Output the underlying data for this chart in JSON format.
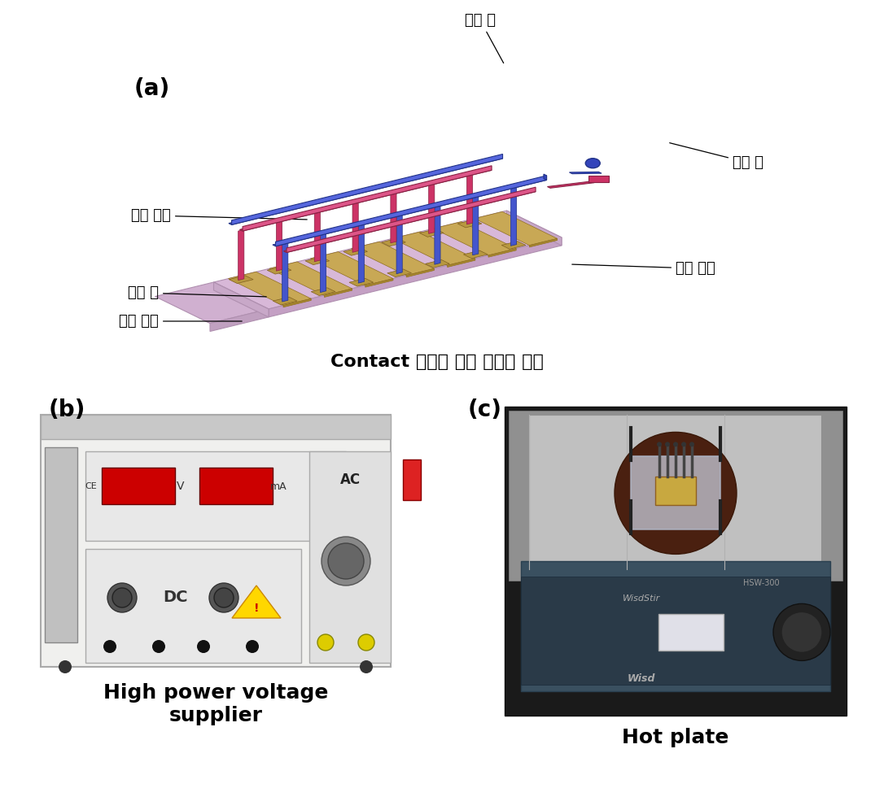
{
  "fig_width": 10.75,
  "fig_height": 9.69,
  "background_color": "#ffffff",
  "panel_a": {
    "label": "(a)",
    "caption": "Contact 방법에 의해 연결된 전선",
    "annot_yanggeuk": "양극 선",
    "annot_eumgeuk": "음극 선",
    "annot_habu": "하부 전극",
    "annot_sangbu": "상부 전극",
    "annot_boho": "보호 층",
    "annot_apjeon": "압전 박막"
  },
  "panel_b": {
    "label": "(b)",
    "caption_line1": "High power voltage",
    "caption_line2": "supplier"
  },
  "panel_c": {
    "label": "(c)",
    "caption": "Hot plate"
  },
  "font_sizes": {
    "panel_label": 20,
    "annotation": 13,
    "caption_a": 16,
    "caption_bc": 18
  },
  "colors": {
    "blue_rail": "#4455CC",
    "pink_rail": "#CC3366",
    "base_top": "#D8B8D8",
    "base_front": "#C4A0C4",
    "base_left": "#E0C8E0",
    "base_bottom": "#C0A0C0",
    "strip_top": "#C8A855",
    "strip_side": "#A88830",
    "post_base_top": "#B89840",
    "post_base_side": "#987820",
    "device_bg": "#f0f0f0",
    "plate_silver": "#C8C8C8",
    "plate_dark": "#888888"
  }
}
